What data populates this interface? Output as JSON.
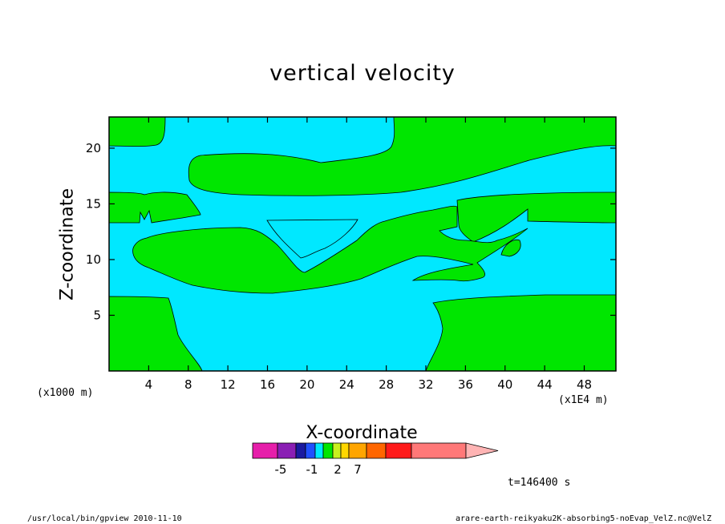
{
  "chart_data": {
    "type": "contour",
    "title": "vertical velocity",
    "xlabel": "X-coordinate",
    "ylabel": "Z-coordinate",
    "x_unit_label": "(x1E4 m)",
    "y_unit_label": "(x1000 m)",
    "x_ticks": [
      4,
      8,
      12,
      16,
      20,
      24,
      28,
      32,
      36,
      40,
      44,
      48
    ],
    "y_ticks": [
      5,
      10,
      15,
      20
    ],
    "xlim": [
      0,
      51.2
    ],
    "ylim": [
      0,
      22.8
    ],
    "fill_colors": {
      "positive": "#00e600",
      "negative": "#00e8ff"
    },
    "colorbar": {
      "colors": [
        "#e61eaa",
        "#8a1eb4",
        "#1a1aa0",
        "#2050ff",
        "#00e8ff",
        "#00e600",
        "#c8f01e",
        "#ffd700",
        "#ffa500",
        "#ff6600",
        "#ff1a1a",
        "#ff7878",
        "#ffb4b4"
      ],
      "tick_labels": [
        "-5",
        "-1",
        "2",
        "7"
      ],
      "tick_values": [
        -5,
        -1,
        2,
        7
      ]
    },
    "time_label": "t=146400 s"
  },
  "footer": {
    "left": "/usr/local/bin/gpview  2010-11-10",
    "right": "arare-earth-reikyaku2K-absorbing5-noEvap_VelZ.nc@VelZ"
  }
}
